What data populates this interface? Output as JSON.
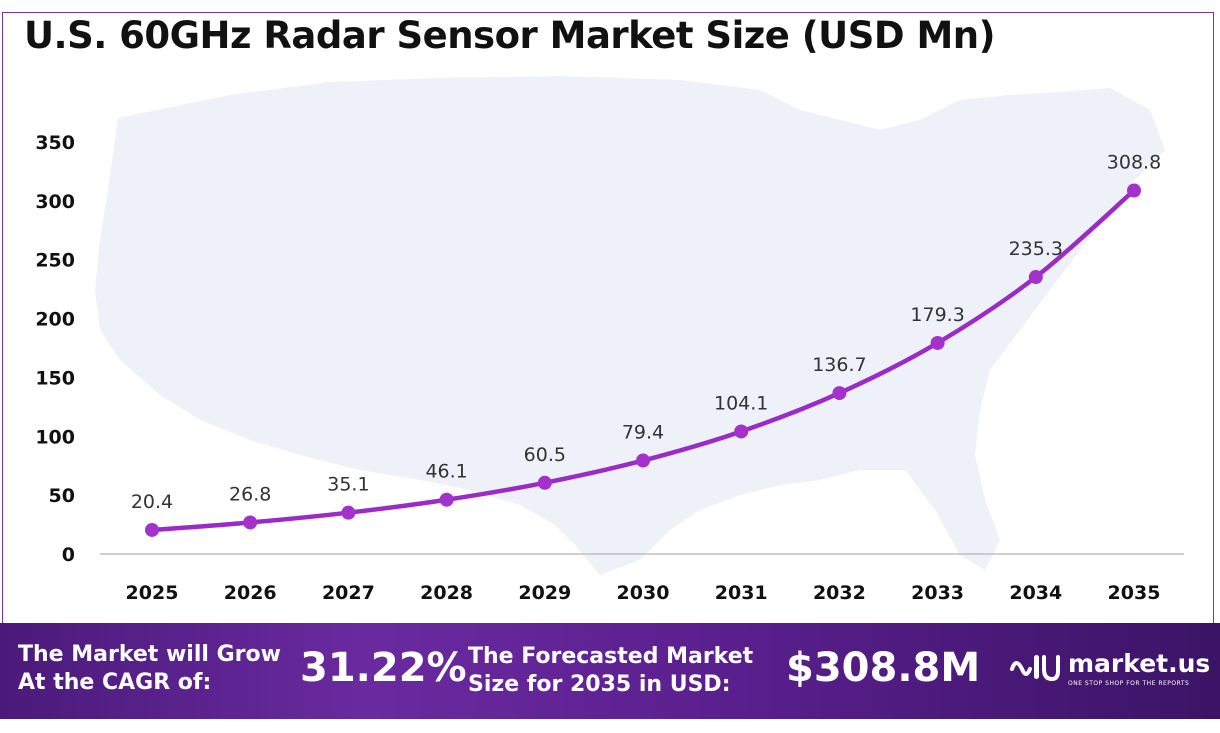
{
  "title": "U.S. 60GHz Radar Sensor Market Size (USD Mn)",
  "colors": {
    "line": "#9a2bc8",
    "marker": "#a332cc",
    "map": "#eef1f8",
    "axis": "#bfbfbf",
    "border": "#7a3a9a"
  },
  "chart_data": {
    "type": "line",
    "title": "U.S. 60GHz Radar Sensor Market Size (USD Mn)",
    "xlabel": "",
    "ylabel": "",
    "categories": [
      "2025",
      "2026",
      "2027",
      "2028",
      "2029",
      "2030",
      "2031",
      "2032",
      "2033",
      "2034",
      "2035"
    ],
    "values": [
      20.4,
      26.8,
      35.1,
      46.1,
      60.5,
      79.4,
      104.1,
      136.7,
      179.3,
      235.3,
      308.8
    ],
    "data_labels": [
      "20.4",
      "26.8",
      "35.1",
      "46.1",
      "60.5",
      "79.4",
      "104.1",
      "136.7",
      "179.3",
      "235.3",
      "308.8"
    ],
    "yticks": [
      "0",
      "50",
      "100",
      "150",
      "200",
      "250",
      "300",
      "350"
    ],
    "ylim": [
      0,
      350
    ],
    "grid": false,
    "legend": "none"
  },
  "footer": {
    "cagr_label": "The Market will Grow\nAt the CAGR of:",
    "cagr_value": "31.22%",
    "forecast_label": "The Forecasted Market\nSize for 2035 in USD:",
    "forecast_value": "$308.8M",
    "brand_name": "market.us",
    "brand_tagline": "ONE STOP SHOP FOR THE REPORTS",
    "brand_icon": "market-us-logo-icon"
  }
}
